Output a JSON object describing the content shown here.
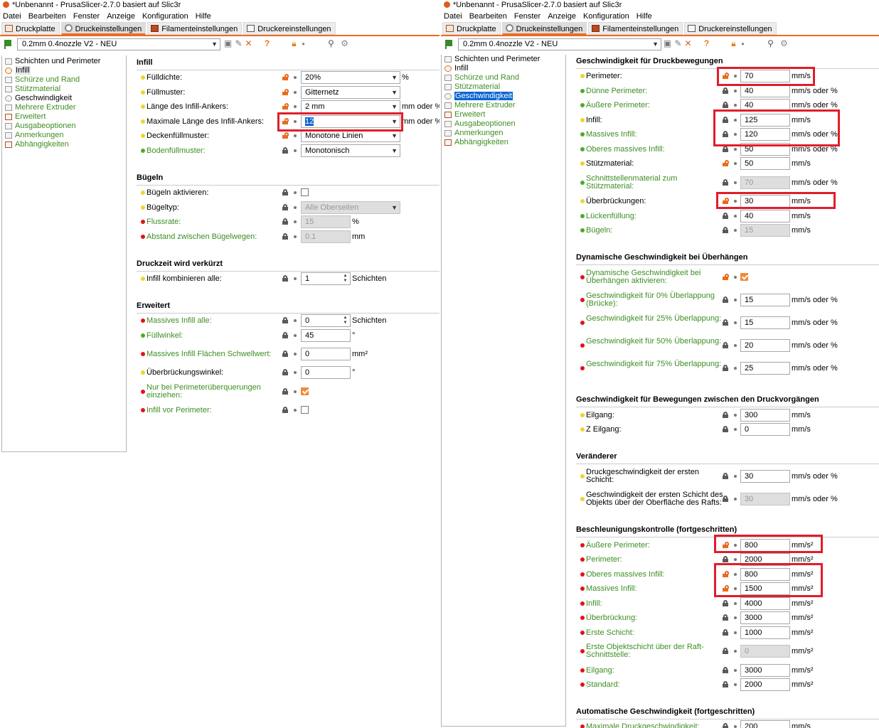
{
  "title": "*Unbenannt - PrusaSlicer-2.7.0 basiert auf Slic3r",
  "menu": [
    "Datei",
    "Bearbeiten",
    "Fenster",
    "Anzeige",
    "Konfiguration",
    "Hilfe"
  ],
  "tabs": [
    "Druckplatte",
    "Druckeinstellungen",
    "Filamenteinstellungen",
    "Druckereinstellungen"
  ],
  "preset": "0.2mm 0.4nozzle V2 - NEU",
  "sidebar": [
    "Schichten und Perimeter",
    "Infill",
    "Schürze und Rand",
    "Stützmaterial",
    "Geschwindigkeit",
    "Mehrere Extruder",
    "Erweitert",
    "Ausgabeoptionen",
    "Anmerkungen",
    "Abhängigkeiten"
  ],
  "left": {
    "sections": [
      "Infill",
      "Bügeln",
      "Druckzeit wird verkürzt",
      "Erweitert"
    ],
    "rows": [
      {
        "label": "Fülldichte:",
        "value": "20%",
        "unit": "%"
      },
      {
        "label": "Füllmuster:",
        "value": "Gitternetz",
        "unit": ""
      },
      {
        "label": "Länge des Infill-Ankers:",
        "value": "2 mm",
        "unit": "mm oder %"
      },
      {
        "label": "Maximale Länge des Infill-Ankers:",
        "value": "12",
        "unit": "mm oder %"
      },
      {
        "label": "Deckenfüllmuster:",
        "value": "Monotone Linien",
        "unit": ""
      },
      {
        "label": "Bodenfüllmuster:",
        "value": "Monotonisch",
        "unit": ""
      },
      {
        "label": "Bügeln aktivieren:",
        "value": "",
        "unit": ""
      },
      {
        "label": "Bügeltyp:",
        "value": "Alle Oberseiten",
        "unit": ""
      },
      {
        "label": "Flussrate:",
        "value": "15",
        "unit": "%"
      },
      {
        "label": "Abstand zwischen Bügelwegen:",
        "value": "0.1",
        "unit": "mm"
      },
      {
        "label": "Infill kombinieren alle:",
        "value": "1",
        "unit": "Schichten"
      },
      {
        "label": "Massives Infill alle:",
        "value": "0",
        "unit": "Schichten"
      },
      {
        "label": "Füllwinkel:",
        "value": "45",
        "unit": "°"
      },
      {
        "label": "Massives Infill Flächen Schwellwert:",
        "value": "0",
        "unit": "mm²"
      },
      {
        "label": "Überbrückungswinkel:",
        "value": "0",
        "unit": "°"
      },
      {
        "label": "Nur bei Perimeterüberquerungen einziehen:",
        "value": "",
        "unit": ""
      },
      {
        "label": "Infill vor Perimeter:",
        "value": "",
        "unit": ""
      }
    ]
  },
  "right": {
    "sections": [
      "Geschwindigkeit für Druckbewegungen",
      "Dynamische Geschwindigkeit bei Überhängen",
      "Geschwindigkeit für Bewegungen zwischen den Druckvorgängen",
      "Veränderer",
      "Beschleunigungskontrolle (fortgeschritten)",
      "Automatische Geschwindigkeit (fortgeschritten)"
    ],
    "rows": [
      {
        "label": "Perimeter:",
        "value": "70",
        "unit": "mm/s"
      },
      {
        "label": "Dünne Perimeter:",
        "value": "40",
        "unit": "mm/s oder %"
      },
      {
        "label": "Äußere Perimeter:",
        "value": "40",
        "unit": "mm/s oder %"
      },
      {
        "label": "Infill:",
        "value": "125",
        "unit": "mm/s"
      },
      {
        "label": "Massives Infill:",
        "value": "120",
        "unit": "mm/s oder %"
      },
      {
        "label": "Oberes massives Infill:",
        "value": "50",
        "unit": "mm/s oder %"
      },
      {
        "label": "Stützmaterial:",
        "value": "50",
        "unit": "mm/s"
      },
      {
        "label": "Schnittstellenmaterial zum Stützmaterial:",
        "value": "70",
        "unit": "mm/s oder %"
      },
      {
        "label": "Überbrückungen:",
        "value": "30",
        "unit": "mm/s"
      },
      {
        "label": "Lückenfüllung:",
        "value": "40",
        "unit": "mm/s"
      },
      {
        "label": "Bügeln:",
        "value": "15",
        "unit": "mm/s"
      },
      {
        "label": "Dynamische Geschwindigkeit bei Überhängen aktivieren:",
        "value": "",
        "unit": ""
      },
      {
        "label": "Geschwindigkeit für 0% Überlappung (Brücke):",
        "value": "15",
        "unit": "mm/s oder %"
      },
      {
        "label": "Geschwindigkeit für 25% Überlappung:",
        "value": "15",
        "unit": "mm/s oder %"
      },
      {
        "label": "Geschwindigkeit für 50% Überlappung:",
        "value": "20",
        "unit": "mm/s oder %"
      },
      {
        "label": "Geschwindigkeit für 75% Überlappung:",
        "value": "25",
        "unit": "mm/s oder %"
      },
      {
        "label": "Eilgang:",
        "value": "300",
        "unit": "mm/s"
      },
      {
        "label": "Z Eilgang:",
        "value": "0",
        "unit": "mm/s"
      },
      {
        "label": "Druckgeschwindigkeit der ersten Schicht:",
        "value": "30",
        "unit": "mm/s oder %"
      },
      {
        "label": "Geschwindigkeit der ersten Schicht des Objekts über der Oberfläche des Rafts:",
        "value": "30",
        "unit": "mm/s oder %"
      },
      {
        "label": "Äußere Perimeter:",
        "value": "800",
        "unit": "mm/s²"
      },
      {
        "label": "Perimeter:",
        "value": "2000",
        "unit": "mm/s²"
      },
      {
        "label": "Oberes massives Infill:",
        "value": "800",
        "unit": "mm/s²"
      },
      {
        "label": "Massives Infill:",
        "value": "1500",
        "unit": "mm/s²"
      },
      {
        "label": "Infill:",
        "value": "4000",
        "unit": "mm/s²"
      },
      {
        "label": "Überbrückung:",
        "value": "3000",
        "unit": "mm/s²"
      },
      {
        "label": "Erste Schicht:",
        "value": "1000",
        "unit": "mm/s²"
      },
      {
        "label": "Erste Objektschicht über der Raft-Schnittstelle:",
        "value": "0",
        "unit": "mm/s²"
      },
      {
        "label": "Eilgang:",
        "value": "3000",
        "unit": "mm/s²"
      },
      {
        "label": "Standard:",
        "value": "2000",
        "unit": "mm/s²"
      },
      {
        "label": "Maximale Druckgeschwindigkeit:",
        "value": "200",
        "unit": "mm/s"
      }
    ]
  },
  "colors": {
    "accent": "#ed6b21",
    "highlight": "#e11d2a",
    "selection": "#0a64d0",
    "simple": "#f2d22e",
    "expert": "#e2121c"
  }
}
